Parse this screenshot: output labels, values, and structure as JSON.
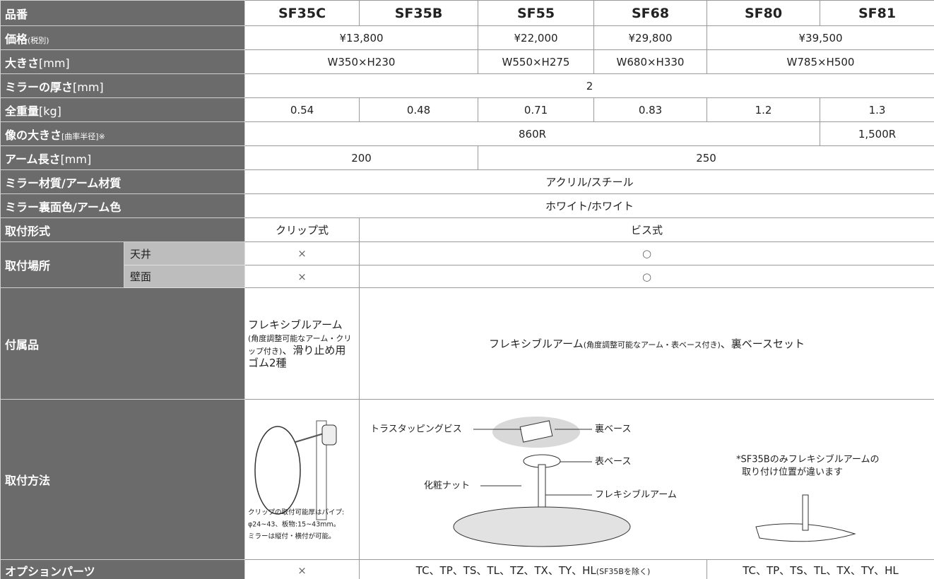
{
  "table": {
    "header": {
      "label": "品番",
      "models": [
        "SF35C",
        "SF35B",
        "SF55",
        "SF68",
        "SF80",
        "SF81"
      ]
    },
    "price": {
      "label": "価格",
      "note": "(税別)",
      "values": [
        "¥13,800",
        "¥22,000",
        "¥29,800",
        "¥39,500"
      ]
    },
    "size": {
      "label": "大きさ",
      "note": "[mm]",
      "values": [
        "W350×H230",
        "W550×H275",
        "W680×H330",
        "W785×H500"
      ]
    },
    "thickness": {
      "label": "ミラーの厚さ",
      "note": "[mm]",
      "values": [
        "2"
      ]
    },
    "weight": {
      "label": "全重量",
      "note": "[kg]",
      "values": [
        "0.54",
        "0.48",
        "0.71",
        "0.83",
        "1.2",
        "1.3"
      ]
    },
    "image_size": {
      "label": "像の大きさ",
      "note": "[曲率半径]※",
      "values": [
        "860R",
        "1,500R"
      ]
    },
    "arm_length": {
      "label": "アーム長さ",
      "note": "[mm]",
      "values": [
        "200",
        "250"
      ]
    },
    "material": {
      "label": "ミラー材質/アーム材質",
      "values": [
        "アクリル/スチール"
      ]
    },
    "color": {
      "label": "ミラー裏面色/アーム色",
      "values": [
        "ホワイト/ホワイト"
      ]
    },
    "mount_type": {
      "label": "取付形式",
      "values": [
        "クリップ式",
        "ビス式"
      ]
    },
    "mount_place": {
      "label": "取付場所",
      "ceiling": {
        "label": "天井",
        "values": [
          "×",
          "○"
        ]
      },
      "wall": {
        "label": "壁面",
        "values": [
          "×",
          "○"
        ]
      }
    },
    "accessories": {
      "label": "付属品",
      "values": [
        {
          "main": "フレキシブルアーム",
          "note": "(角度調整可能なアーム・クリップ付き)",
          "rest": "、滑り止め用ゴム2種"
        },
        {
          "main": "フレキシブルアーム",
          "note": "(角度調整可能なアーム・表ベース付き)",
          "rest": "、裏ベースセット"
        }
      ]
    },
    "mounting": {
      "label": "取付方法",
      "clip_note": [
        "クリップの取付可能厚はパイプ:",
        "φ24~43、板物:15~43mm。",
        "ミラーは縦付・横付が可能。"
      ],
      "diagram_labels": [
        "トラスタッピングビス",
        "裏ベース",
        "表ベース",
        "化粧ナット",
        "フレキシブルアーム"
      ],
      "side_note": [
        "*SF35Bのみフレキシブルアームの",
        "取り付け位置が違います"
      ]
    },
    "options": {
      "label": "オプションパーツ",
      "values": [
        {
          "main": "×"
        },
        {
          "main": "TC、TP、TS、TL、TZ、TX、TY、HL",
          "note": "(SF35Bを除く)"
        },
        {
          "main": "TC、TP、TS、TL、TX、TY、HL"
        }
      ]
    }
  }
}
